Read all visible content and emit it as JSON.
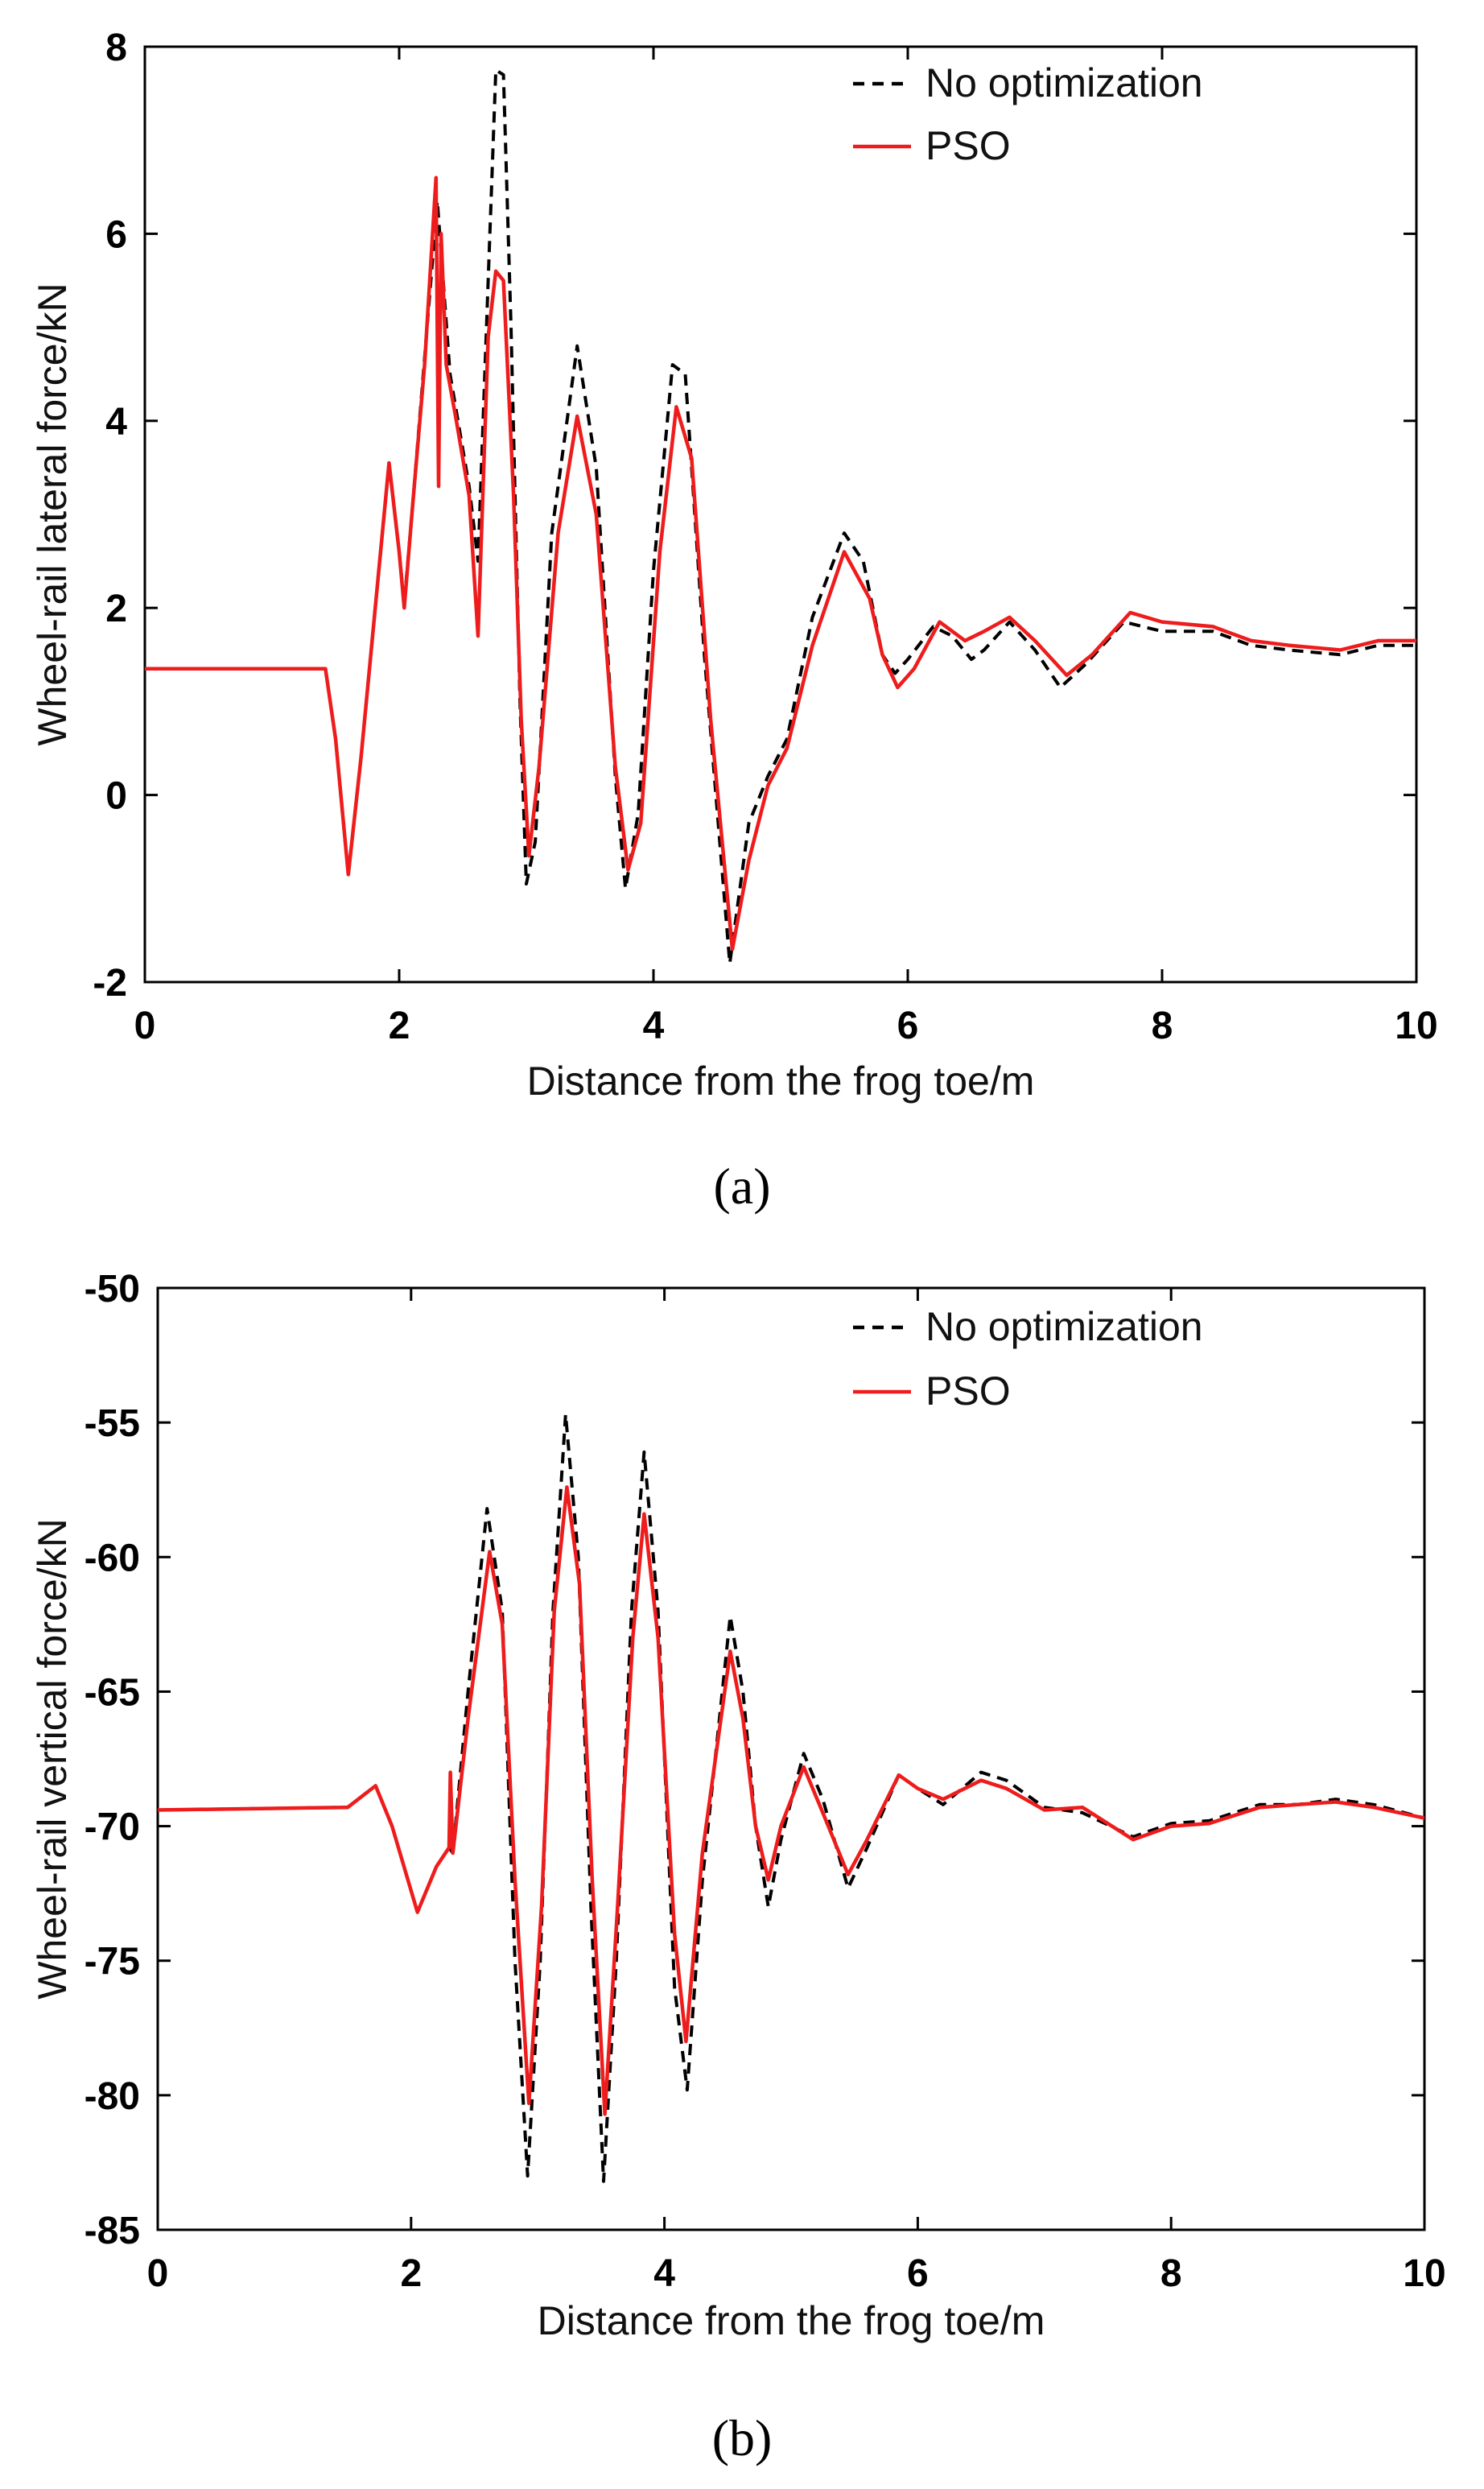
{
  "chart_data": [
    {
      "type": "line",
      "panel_label": "(a)",
      "title": "",
      "xlabel": "Distance from the frog toe/m",
      "ylabel": "Wheel-rail lateral force/kN",
      "xlim": [
        0,
        10
      ],
      "ylim": [
        -2,
        8
      ],
      "xticks": [
        "0",
        "2",
        "4",
        "6",
        "8",
        "10"
      ],
      "yticks": [
        "-2",
        "0",
        "2",
        "4",
        "6",
        "8"
      ],
      "legend_position": "top-right",
      "series": [
        {
          "name": "No optimization",
          "color": "#000000",
          "style": "dashed",
          "points": [
            [
              0,
              1.35
            ],
            [
              1.42,
              1.35
            ],
            [
              1.5,
              0.6
            ],
            [
              1.6,
              -0.85
            ],
            [
              1.7,
              0.4
            ],
            [
              1.92,
              3.55
            ],
            [
              2.0,
              2.6
            ],
            [
              2.04,
              2.05
            ],
            [
              2.1,
              3.0
            ],
            [
              2.3,
              6.35
            ],
            [
              2.4,
              4.5
            ],
            [
              2.55,
              3.3
            ],
            [
              2.62,
              2.5
            ],
            [
              2.7,
              5.5
            ],
            [
              2.76,
              7.75
            ],
            [
              2.82,
              7.7
            ],
            [
              2.88,
              5.0
            ],
            [
              2.95,
              1.0
            ],
            [
              3.0,
              -0.95
            ],
            [
              3.07,
              -0.5
            ],
            [
              3.2,
              2.8
            ],
            [
              3.4,
              4.8
            ],
            [
              3.55,
              3.5
            ],
            [
              3.7,
              0.2
            ],
            [
              3.78,
              -1.0
            ],
            [
              3.88,
              -0.2
            ],
            [
              4.0,
              2.4
            ],
            [
              4.15,
              4.6
            ],
            [
              4.25,
              4.5
            ],
            [
              4.4,
              1.5
            ],
            [
              4.6,
              -1.8
            ],
            [
              4.75,
              -0.3
            ],
            [
              4.9,
              0.2
            ],
            [
              5.05,
              0.6
            ],
            [
              5.25,
              1.9
            ],
            [
              5.5,
              2.8
            ],
            [
              5.65,
              2.5
            ],
            [
              5.8,
              1.5
            ],
            [
              5.9,
              1.3
            ],
            [
              6.0,
              1.45
            ],
            [
              6.2,
              1.8
            ],
            [
              6.35,
              1.7
            ],
            [
              6.5,
              1.45
            ],
            [
              6.6,
              1.55
            ],
            [
              6.8,
              1.85
            ],
            [
              7.0,
              1.55
            ],
            [
              7.2,
              1.15
            ],
            [
              7.4,
              1.4
            ],
            [
              7.7,
              1.85
            ],
            [
              8.0,
              1.75
            ],
            [
              8.4,
              1.75
            ],
            [
              8.7,
              1.6
            ],
            [
              9.0,
              1.55
            ],
            [
              9.4,
              1.5
            ],
            [
              9.7,
              1.6
            ],
            [
              10.0,
              1.6
            ]
          ]
        },
        {
          "name": "PSO",
          "color": "#ee1c1c",
          "style": "solid",
          "points": [
            [
              0,
              1.35
            ],
            [
              1.42,
              1.35
            ],
            [
              1.5,
              0.6
            ],
            [
              1.6,
              -0.85
            ],
            [
              1.7,
              0.4
            ],
            [
              1.92,
              3.55
            ],
            [
              2.0,
              2.6
            ],
            [
              2.04,
              2.0
            ],
            [
              2.1,
              3.0
            ],
            [
              2.2,
              4.6
            ],
            [
              2.29,
              6.6
            ],
            [
              2.31,
              3.3
            ],
            [
              2.33,
              6.0
            ],
            [
              2.37,
              4.6
            ],
            [
              2.45,
              4.0
            ],
            [
              2.55,
              3.2
            ],
            [
              2.62,
              1.7
            ],
            [
              2.7,
              4.9
            ],
            [
              2.76,
              5.6
            ],
            [
              2.82,
              5.5
            ],
            [
              2.9,
              3.2
            ],
            [
              2.96,
              0.8
            ],
            [
              3.02,
              -0.65
            ],
            [
              3.1,
              0.3
            ],
            [
              3.25,
              2.8
            ],
            [
              3.4,
              4.05
            ],
            [
              3.55,
              3.0
            ],
            [
              3.7,
              0.3
            ],
            [
              3.8,
              -0.8
            ],
            [
              3.9,
              -0.3
            ],
            [
              4.05,
              2.6
            ],
            [
              4.18,
              4.15
            ],
            [
              4.3,
              3.6
            ],
            [
              4.45,
              0.8
            ],
            [
              4.62,
              -1.65
            ],
            [
              4.75,
              -0.7
            ],
            [
              4.9,
              0.1
            ],
            [
              5.05,
              0.5
            ],
            [
              5.25,
              1.6
            ],
            [
              5.5,
              2.6
            ],
            [
              5.7,
              2.1
            ],
            [
              5.8,
              1.5
            ],
            [
              5.92,
              1.15
            ],
            [
              6.05,
              1.35
            ],
            [
              6.25,
              1.85
            ],
            [
              6.45,
              1.65
            ],
            [
              6.6,
              1.75
            ],
            [
              6.8,
              1.9
            ],
            [
              7.0,
              1.65
            ],
            [
              7.25,
              1.28
            ],
            [
              7.45,
              1.5
            ],
            [
              7.75,
              1.95
            ],
            [
              8.0,
              1.85
            ],
            [
              8.4,
              1.8
            ],
            [
              8.7,
              1.65
            ],
            [
              9.0,
              1.6
            ],
            [
              9.4,
              1.55
            ],
            [
              9.7,
              1.65
            ],
            [
              10.0,
              1.65
            ]
          ]
        }
      ]
    },
    {
      "type": "line",
      "panel_label": "(b)",
      "title": "",
      "xlabel": "Distance from the frog toe/m",
      "ylabel": "Wheel-rail vertical force/kN",
      "xlim": [
        0,
        10
      ],
      "ylim": [
        -85,
        -50
      ],
      "xticks": [
        "0",
        "2",
        "4",
        "6",
        "8",
        "10"
      ],
      "yticks": [
        "-50",
        "-55",
        "-60",
        "-65",
        "-70",
        "-75",
        "-80",
        "-85"
      ],
      "legend_position": "top-right",
      "series": [
        {
          "name": "No optimization",
          "color": "#000000",
          "style": "dashed",
          "points": [
            [
              0,
              -69.4
            ],
            [
              1.5,
              -69.3
            ],
            [
              1.72,
              -68.5
            ],
            [
              1.85,
              -70.0
            ],
            [
              2.05,
              -73.2
            ],
            [
              2.2,
              -71.5
            ],
            [
              2.3,
              -70.8
            ],
            [
              2.33,
              -71.0
            ],
            [
              2.45,
              -65.0
            ],
            [
              2.6,
              -58.2
            ],
            [
              2.72,
              -62.0
            ],
            [
              2.82,
              -75.0
            ],
            [
              2.92,
              -83.0
            ],
            [
              3.02,
              -75.0
            ],
            [
              3.12,
              -62.0
            ],
            [
              3.22,
              -54.7
            ],
            [
              3.32,
              -60.0
            ],
            [
              3.42,
              -73.0
            ],
            [
              3.52,
              -83.2
            ],
            [
              3.62,
              -75.0
            ],
            [
              3.74,
              -62.0
            ],
            [
              3.84,
              -56.1
            ],
            [
              3.95,
              -62.0
            ],
            [
              4.08,
              -76.0
            ],
            [
              4.18,
              -79.8
            ],
            [
              4.3,
              -72.0
            ],
            [
              4.52,
              -62.2
            ],
            [
              4.62,
              -65.0
            ],
            [
              4.72,
              -70.0
            ],
            [
              4.82,
              -73.0
            ],
            [
              4.92,
              -70.5
            ],
            [
              5.1,
              -67.3
            ],
            [
              5.25,
              -69.0
            ],
            [
              5.45,
              -72.3
            ],
            [
              5.6,
              -70.8
            ],
            [
              5.85,
              -68.1
            ],
            [
              6.0,
              -68.6
            ],
            [
              6.2,
              -69.2
            ],
            [
              6.5,
              -68.0
            ],
            [
              6.7,
              -68.3
            ],
            [
              7.0,
              -69.3
            ],
            [
              7.3,
              -69.5
            ],
            [
              7.7,
              -70.4
            ],
            [
              8.0,
              -69.9
            ],
            [
              8.3,
              -69.8
            ],
            [
              8.7,
              -69.2
            ],
            [
              9.0,
              -69.2
            ],
            [
              9.3,
              -69.0
            ],
            [
              9.6,
              -69.2
            ],
            [
              10.0,
              -69.7
            ]
          ]
        },
        {
          "name": "PSO",
          "color": "#ee1c1c",
          "style": "solid",
          "points": [
            [
              0,
              -69.4
            ],
            [
              1.5,
              -69.3
            ],
            [
              1.72,
              -68.5
            ],
            [
              1.85,
              -70.0
            ],
            [
              2.05,
              -73.2
            ],
            [
              2.2,
              -71.5
            ],
            [
              2.3,
              -70.8
            ],
            [
              2.31,
              -68.0
            ],
            [
              2.33,
              -71.0
            ],
            [
              2.45,
              -66.0
            ],
            [
              2.62,
              -59.8
            ],
            [
              2.72,
              -62.5
            ],
            [
              2.82,
              -72.0
            ],
            [
              2.93,
              -80.3
            ],
            [
              3.03,
              -73.0
            ],
            [
              3.13,
              -62.0
            ],
            [
              3.23,
              -57.4
            ],
            [
              3.33,
              -61.0
            ],
            [
              3.43,
              -72.0
            ],
            [
              3.53,
              -80.7
            ],
            [
              3.63,
              -73.0
            ],
            [
              3.75,
              -63.0
            ],
            [
              3.84,
              -58.4
            ],
            [
              3.95,
              -63.0
            ],
            [
              4.08,
              -74.0
            ],
            [
              4.17,
              -78.0
            ],
            [
              4.3,
              -71.0
            ],
            [
              4.52,
              -63.5
            ],
            [
              4.62,
              -66.0
            ],
            [
              4.72,
              -70.0
            ],
            [
              4.82,
              -72.0
            ],
            [
              4.92,
              -70.0
            ],
            [
              5.1,
              -67.8
            ],
            [
              5.25,
              -69.5
            ],
            [
              5.45,
              -71.8
            ],
            [
              5.6,
              -70.5
            ],
            [
              5.85,
              -68.1
            ],
            [
              6.0,
              -68.6
            ],
            [
              6.2,
              -69.0
            ],
            [
              6.5,
              -68.3
            ],
            [
              6.7,
              -68.6
            ],
            [
              7.0,
              -69.4
            ],
            [
              7.3,
              -69.3
            ],
            [
              7.7,
              -70.5
            ],
            [
              8.0,
              -70.0
            ],
            [
              8.3,
              -69.9
            ],
            [
              8.7,
              -69.3
            ],
            [
              9.0,
              -69.2
            ],
            [
              9.3,
              -69.1
            ],
            [
              9.6,
              -69.3
            ],
            [
              10.0,
              -69.7
            ]
          ]
        }
      ]
    }
  ]
}
